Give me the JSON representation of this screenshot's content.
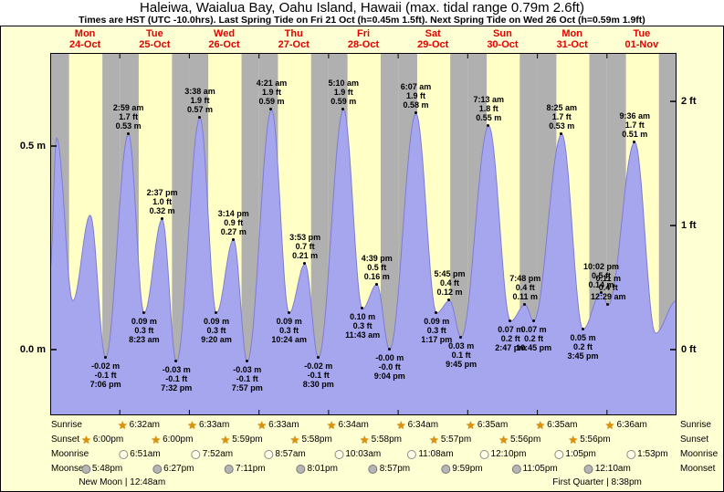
{
  "title": "Haleiwa, Waialua Bay, Oahu Island, Hawaii (max. tidal range 0.79m 2.6ft)",
  "subtitle": "Times are HST (UTC -10.0hrs). Last Spring Tide on Fri 21 Oct (h=0.45m 1.5ft). Next Spring Tide on Wed 26 Oct (h=0.59m 1.9ft)",
  "axis": {
    "left_labels": [
      "0.5 m",
      "0.0 m"
    ],
    "left_values_m": [
      0.5,
      0.0
    ],
    "right_labels": [
      "2 ft",
      "1 ft",
      "0 ft"
    ],
    "right_values_ft": [
      2,
      1,
      0
    ]
  },
  "days": [
    {
      "dow": "Mon",
      "date": "24-Oct"
    },
    {
      "dow": "Tue",
      "date": "25-Oct"
    },
    {
      "dow": "Wed",
      "date": "26-Oct"
    },
    {
      "dow": "Thu",
      "date": "27-Oct"
    },
    {
      "dow": "Fri",
      "date": "28-Oct"
    },
    {
      "dow": "Sat",
      "date": "29-Oct"
    },
    {
      "dow": "Sun",
      "date": "30-Oct"
    },
    {
      "dow": "Mon",
      "date": "31-Oct"
    },
    {
      "dow": "Tue",
      "date": "01-Nov"
    }
  ],
  "chart_data": {
    "type": "area",
    "series_name": "tide height",
    "y_axis": {
      "left_unit": "m",
      "right_unit": "ft",
      "left_ticks_m": [
        0.5,
        0.0
      ],
      "right_ticks_ft": [
        2,
        1,
        0
      ],
      "ylim_m": [
        -0.16,
        0.73
      ]
    },
    "tide_events": [
      {
        "day": 0,
        "hour": 19.1,
        "height_m": -0.02,
        "m_label": "-0.02 m",
        "ft_label": "-0.1 ft",
        "time": "7:06 pm",
        "type": "low"
      },
      {
        "day": 1,
        "hour": 2.98,
        "height_m": 0.53,
        "m_label": "0.53 m",
        "ft_label": "1.7 ft",
        "time": "2:59 am",
        "type": "high"
      },
      {
        "day": 1,
        "hour": 8.38,
        "height_m": 0.09,
        "m_label": "0.09 m",
        "ft_label": "0.3 ft",
        "time": "8:23 am",
        "type": "low"
      },
      {
        "day": 1,
        "hour": 14.62,
        "height_m": 0.32,
        "m_label": "0.32 m",
        "ft_label": "1.0 ft",
        "time": "2:37 pm",
        "type": "high"
      },
      {
        "day": 1,
        "hour": 19.53,
        "height_m": -0.03,
        "m_label": "-0.03 m",
        "ft_label": "-0.1 ft",
        "time": "7:32 pm",
        "type": "low"
      },
      {
        "day": 2,
        "hour": 3.63,
        "height_m": 0.57,
        "m_label": "0.57 m",
        "ft_label": "1.9 ft",
        "time": "3:38 am",
        "type": "high"
      },
      {
        "day": 2,
        "hour": 9.33,
        "height_m": 0.09,
        "m_label": "0.09 m",
        "ft_label": "0.3 ft",
        "time": "9:20 am",
        "type": "low"
      },
      {
        "day": 2,
        "hour": 15.23,
        "height_m": 0.27,
        "m_label": "0.27 m",
        "ft_label": "0.9 ft",
        "time": "3:14 pm",
        "type": "high"
      },
      {
        "day": 2,
        "hour": 19.95,
        "height_m": -0.03,
        "m_label": "-0.03 m",
        "ft_label": "-0.1 ft",
        "time": "7:57 pm",
        "type": "low"
      },
      {
        "day": 3,
        "hour": 4.35,
        "height_m": 0.59,
        "m_label": "0.59 m",
        "ft_label": "1.9 ft",
        "time": "4:21 am",
        "type": "high"
      },
      {
        "day": 3,
        "hour": 10.4,
        "height_m": 0.09,
        "m_label": "0.09 m",
        "ft_label": "0.3 ft",
        "time": "10:24 am",
        "type": "low"
      },
      {
        "day": 3,
        "hour": 15.88,
        "height_m": 0.21,
        "m_label": "0.21 m",
        "ft_label": "0.7 ft",
        "time": "3:53 pm",
        "type": "high"
      },
      {
        "day": 3,
        "hour": 20.5,
        "height_m": -0.02,
        "m_label": "-0.02 m",
        "ft_label": "-0.1 ft",
        "time": "8:30 pm",
        "type": "low"
      },
      {
        "day": 4,
        "hour": 5.17,
        "height_m": 0.59,
        "m_label": "0.59 m",
        "ft_label": "1.9 ft",
        "time": "5:10 am",
        "type": "high"
      },
      {
        "day": 4,
        "hour": 11.72,
        "height_m": 0.1,
        "m_label": "0.10 m",
        "ft_label": "0.3 ft",
        "time": "11:43 am",
        "type": "low"
      },
      {
        "day": 4,
        "hour": 16.65,
        "height_m": 0.16,
        "m_label": "0.16 m",
        "ft_label": "0.5 ft",
        "time": "4:39 pm",
        "type": "high"
      },
      {
        "day": 4,
        "hour": 21.07,
        "height_m": 0.0,
        "m_label": "-0.00 m",
        "ft_label": "-0.0 ft",
        "time": "9:04 pm",
        "type": "low"
      },
      {
        "day": 5,
        "hour": 6.12,
        "height_m": 0.58,
        "m_label": "0.58 m",
        "ft_label": "1.9 ft",
        "time": "6:07 am",
        "type": "high"
      },
      {
        "day": 5,
        "hour": 13.28,
        "height_m": 0.09,
        "m_label": "0.09 m",
        "ft_label": "0.3 ft",
        "time": "1:17 pm",
        "type": "low"
      },
      {
        "day": 5,
        "hour": 17.75,
        "height_m": 0.12,
        "m_label": "0.12 m",
        "ft_label": "0.4 ft",
        "time": "5:45 pm",
        "type": "high"
      },
      {
        "day": 5,
        "hour": 21.75,
        "height_m": 0.03,
        "m_label": "0.03 m",
        "ft_label": "0.1 ft",
        "time": "9:45 pm",
        "type": "low"
      },
      {
        "day": 6,
        "hour": 7.22,
        "height_m": 0.55,
        "m_label": "0.55 m",
        "ft_label": "1.8 ft",
        "time": "7:13 am",
        "type": "high"
      },
      {
        "day": 6,
        "hour": 14.78,
        "height_m": 0.07,
        "m_label": "0.07 m",
        "ft_label": "0.2 ft",
        "time": "2:47 pm",
        "type": "low"
      },
      {
        "day": 6,
        "hour": 19.8,
        "height_m": 0.11,
        "m_label": "0.11 m",
        "ft_label": "0.4 ft",
        "time": "7:48 pm",
        "type": "high"
      },
      {
        "day": 6,
        "hour": 22.75,
        "height_m": 0.07,
        "m_label": "0.07 m",
        "ft_label": "0.2 ft",
        "time": "10:45 pm",
        "type": "low"
      },
      {
        "day": 7,
        "hour": 8.42,
        "height_m": 0.53,
        "m_label": "0.53 m",
        "ft_label": "1.7 ft",
        "time": "8:25 am",
        "type": "high"
      },
      {
        "day": 7,
        "hour": 15.75,
        "height_m": 0.05,
        "m_label": "0.05 m",
        "ft_label": "0.2 ft",
        "time": "3:45 pm",
        "type": "low"
      },
      {
        "day": 7,
        "hour": 22.03,
        "height_m": 0.14,
        "m_label": "0.14 m",
        "ft_label": "0.5 ft",
        "time": "10:02 pm",
        "type": "high"
      },
      {
        "day": 8,
        "hour": 0.48,
        "height_m": 0.11,
        "m_label": "0.11 m",
        "ft_label": "0.4 ft",
        "time": "12:29 am",
        "type": "low",
        "label_pos": "above"
      },
      {
        "day": 8,
        "hour": 9.6,
        "height_m": 0.51,
        "m_label": "0.51 m",
        "ft_label": "1.7 ft",
        "time": "9:36 am",
        "type": "high"
      }
    ],
    "curve_helper_points": [
      {
        "day": 0,
        "hour": 0,
        "height_m": 0.2
      },
      {
        "day": 0,
        "hour": 2.2,
        "height_m": 0.52
      },
      {
        "day": 0,
        "hour": 7.8,
        "height_m": 0.12
      },
      {
        "day": 0,
        "hour": 13.8,
        "height_m": 0.33
      },
      {
        "day": 8,
        "hour": 16.75,
        "height_m": 0.04
      },
      {
        "day": 8,
        "hour": 24,
        "height_m": 0.12
      }
    ],
    "day_night": {
      "sunrise_h": [
        6.53,
        6.53,
        6.55,
        6.55,
        6.57,
        6.57,
        6.58,
        6.58,
        6.6
      ],
      "sunset_h": [
        18.0,
        18.0,
        17.98,
        17.97,
        17.97,
        17.95,
        17.93,
        17.93,
        17.92
      ]
    },
    "colors": {
      "day_band": "#ffffc6",
      "night_band": "#b0b0b0",
      "tide_fill": "#a6a6ef",
      "tide_stroke": "#7d7dd4",
      "background": "#ffffd4",
      "day_label": "#e60000"
    }
  },
  "astro": {
    "row_labels": [
      "Sunrise",
      "Sunset",
      "Moonrise",
      "Moonset"
    ],
    "sunrise": [
      {
        "day": 1,
        "hour": 6.53,
        "time": "6:32am"
      },
      {
        "day": 2,
        "hour": 6.55,
        "time": "6:33am"
      },
      {
        "day": 3,
        "hour": 6.55,
        "time": "6:33am"
      },
      {
        "day": 4,
        "hour": 6.57,
        "time": "6:34am"
      },
      {
        "day": 5,
        "hour": 6.57,
        "time": "6:34am"
      },
      {
        "day": 6,
        "hour": 6.58,
        "time": "6:35am"
      },
      {
        "day": 7,
        "hour": 6.58,
        "time": "6:35am"
      },
      {
        "day": 8,
        "hour": 6.6,
        "time": "6:36am"
      }
    ],
    "sunset": [
      {
        "day": 0,
        "hour": 18.0,
        "time": "6:00pm"
      },
      {
        "day": 1,
        "hour": 18.0,
        "time": "6:00pm"
      },
      {
        "day": 2,
        "hour": 17.98,
        "time": "5:59pm"
      },
      {
        "day": 3,
        "hour": 17.97,
        "time": "5:58pm"
      },
      {
        "day": 4,
        "hour": 17.97,
        "time": "5:58pm"
      },
      {
        "day": 5,
        "hour": 17.95,
        "time": "5:57pm"
      },
      {
        "day": 6,
        "hour": 17.93,
        "time": "5:56pm"
      },
      {
        "day": 7,
        "hour": 17.93,
        "time": "5:56pm"
      }
    ],
    "moonrise": [
      {
        "day": 1,
        "hour": 6.85,
        "time": "6:51am"
      },
      {
        "day": 2,
        "hour": 7.87,
        "time": "7:52am"
      },
      {
        "day": 3,
        "hour": 8.95,
        "time": "8:57am"
      },
      {
        "day": 4,
        "hour": 10.05,
        "time": "10:03am"
      },
      {
        "day": 5,
        "hour": 11.13,
        "time": "11:08am"
      },
      {
        "day": 6,
        "hour": 12.17,
        "time": "12:10pm"
      },
      {
        "day": 7,
        "hour": 13.08,
        "time": "1:05pm"
      },
      {
        "day": 8,
        "hour": 13.88,
        "time": "1:53pm"
      }
    ],
    "moonset": [
      {
        "day": 0,
        "hour": 17.8,
        "time": "5:48pm"
      },
      {
        "day": 1,
        "hour": 18.45,
        "time": "6:27pm"
      },
      {
        "day": 2,
        "hour": 19.18,
        "time": "7:11pm"
      },
      {
        "day": 3,
        "hour": 20.02,
        "time": "8:01pm"
      },
      {
        "day": 4,
        "hour": 20.95,
        "time": "8:57pm"
      },
      {
        "day": 5,
        "hour": 21.98,
        "time": "9:59pm"
      },
      {
        "day": 6,
        "hour": 23.08,
        "time": "11:05pm"
      },
      {
        "day": 8,
        "hour": 0.17,
        "time": "12:10am"
      }
    ],
    "moon_phases": [
      {
        "name": "New Moon",
        "time": "12:48am",
        "day": 1,
        "hour": 0.8
      },
      {
        "name": "First Quarter",
        "time": "8:38pm",
        "day": 7,
        "hour": 20.63
      }
    ]
  }
}
